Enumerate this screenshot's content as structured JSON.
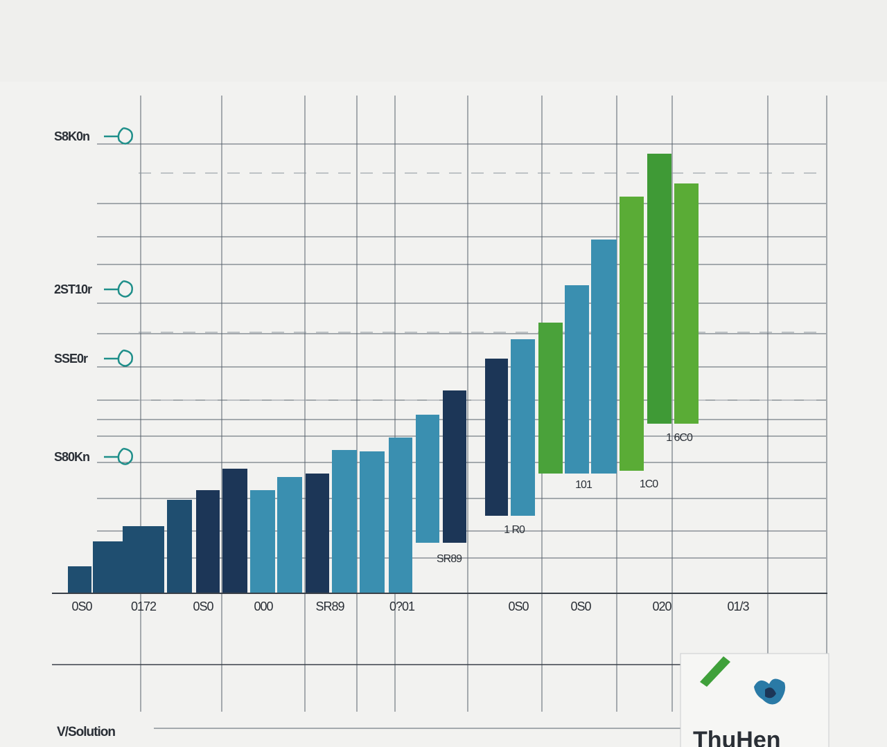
{
  "chart_data": {
    "type": "bar",
    "title": "",
    "xlabel": "V/Solution",
    "ylabel": "",
    "grid": true,
    "y_ticks": [
      {
        "label": "S8K0n",
        "value": 720
      },
      {
        "label": "2ST10r",
        "value": 490
      },
      {
        "label": "SSE0r",
        "value": 385
      },
      {
        "label": "S80Kn",
        "value": 235
      }
    ],
    "x_ticks": [
      "0S0",
      "0172",
      "0S0",
      "000",
      "SR89",
      "0?01",
      "0S0",
      "0S0",
      "020",
      "01/3"
    ],
    "ylim": [
      0,
      800
    ],
    "data_labels": [
      "SR89",
      "1 R0",
      "101",
      "1C0",
      "1 6C0"
    ],
    "series": [
      {
        "color": "#1f4e70",
        "values": [
          42,
          67,
          112,
          142,
          153,
          183
        ]
      },
      {
        "color": "#3a8fb0",
        "values": [
          158,
          172,
          210,
          218,
          232,
          275,
          290,
          335,
          385,
          448,
          515,
          590,
          650
        ]
      },
      {
        "color": "#1c3657",
        "values": [
          137,
          108,
          318,
          390
        ]
      },
      {
        "color": "#4aa23a",
        "values": [
          433,
          643,
          720,
          735,
          672
        ]
      }
    ],
    "bar_values_in_order": [
      42,
      67,
      112,
      142,
      153,
      183,
      218,
      158,
      172,
      180,
      232,
      230,
      270,
      290,
      333,
      378,
      410,
      435,
      515,
      590,
      643,
      710,
      668
    ]
  },
  "footer": {
    "logo_text": "ThuHen"
  },
  "colors": {
    "background": "#efefed",
    "axis": "#3a4048",
    "marker": "#1f8f8a"
  }
}
